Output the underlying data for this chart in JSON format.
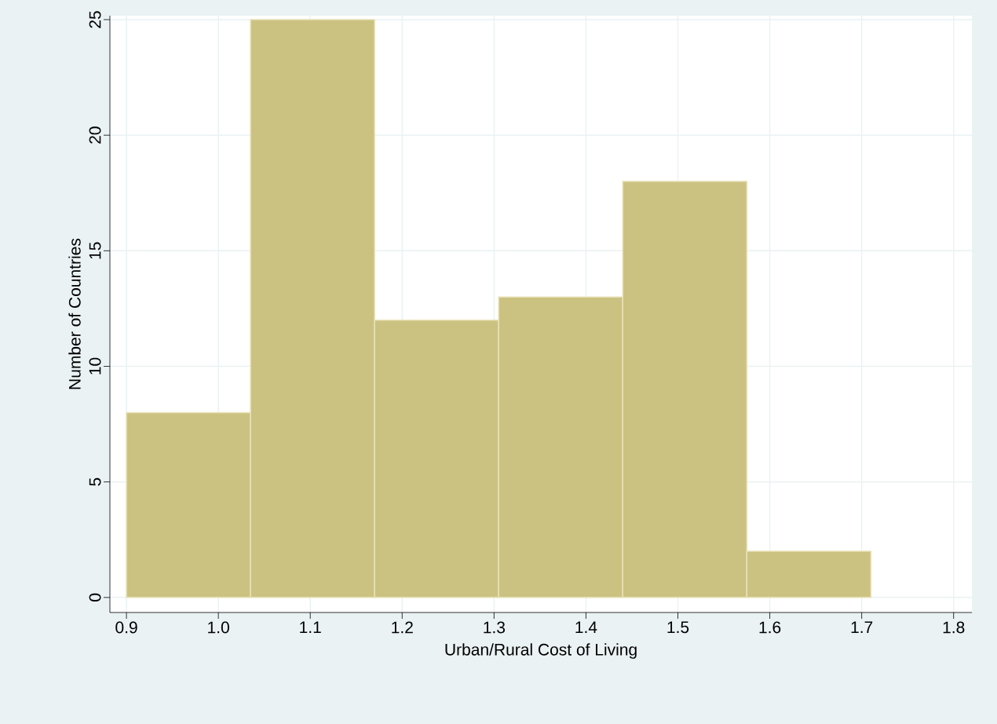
{
  "chart_data": {
    "type": "histogram",
    "xlabel": "Urban/Rural Cost of Living",
    "ylabel": "Number of Countries",
    "bins": [
      0.9,
      1.035,
      1.17,
      1.305,
      1.44,
      1.575,
      1.71
    ],
    "values": [
      8,
      25,
      12,
      13,
      18,
      2
    ],
    "color": "#cbc282",
    "xlim": [
      0.882,
      1.82
    ],
    "ylim": [
      -0.65,
      25.17
    ],
    "xticks": [
      0.9,
      {
        "value": 1.0,
        "label": "1.0"
      },
      1.1,
      1.2,
      1.3,
      1.4,
      1.5,
      1.6,
      1.7,
      1.8
    ],
    "yticks": [
      0,
      5,
      10,
      15,
      20,
      25
    ],
    "grid": true
  }
}
